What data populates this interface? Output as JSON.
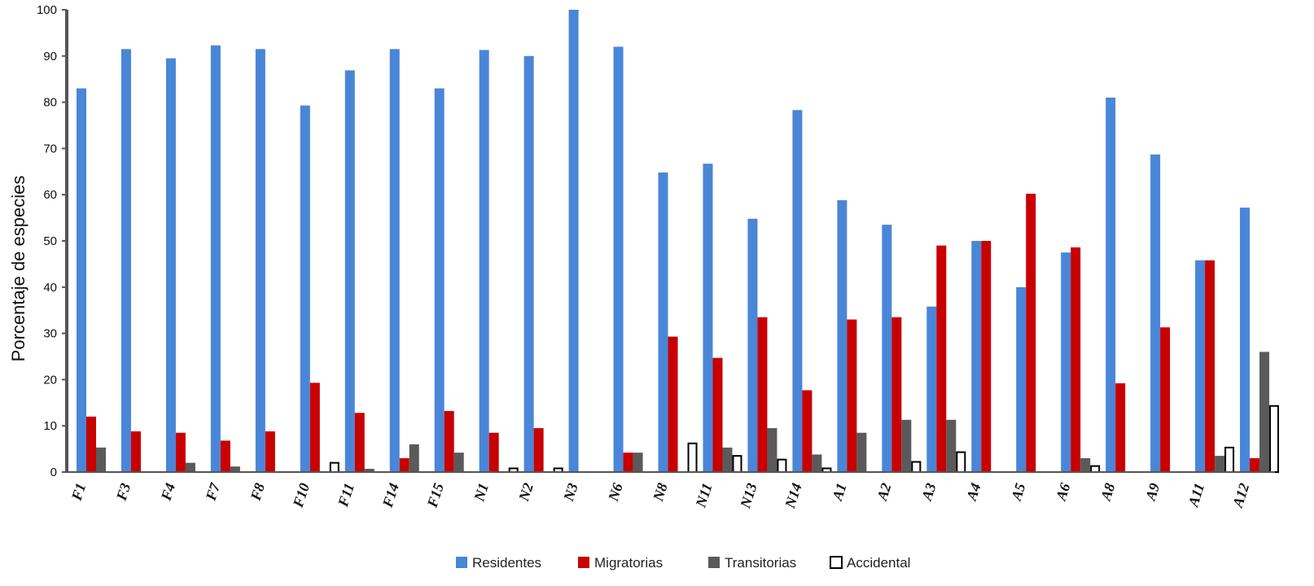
{
  "chart_data": {
    "type": "bar",
    "title": "",
    "xlabel": "",
    "ylabel": "Porcentaje de especies",
    "ylim": [
      0,
      100
    ],
    "yticks": [
      0,
      10,
      20,
      30,
      40,
      50,
      60,
      70,
      80,
      90,
      100
    ],
    "grid": false,
    "legend_position": "bottom",
    "categories": [
      "F1",
      "F3",
      "F4",
      "F7",
      "F8",
      "F10",
      "F11",
      "F14",
      "F15",
      "N1",
      "N2",
      "N3",
      "N6",
      "N8",
      "N11",
      "N13",
      "N14",
      "A1",
      "A2",
      "A3",
      "A4",
      "A5",
      "A6",
      "A8",
      "A9",
      "A11",
      "A12"
    ],
    "series": [
      {
        "name": "Residentes",
        "color": "#4a86d8",
        "values": [
          83,
          91.5,
          89.5,
          92.3,
          91.5,
          79.3,
          86.9,
          91.5,
          83,
          91.3,
          90,
          100,
          92,
          64.8,
          66.7,
          54.8,
          78.3,
          58.8,
          53.5,
          35.8,
          50,
          40,
          47.5,
          81,
          68.7,
          45.8,
          57.2
        ]
      },
      {
        "name": "Migratorias",
        "color": "#c80000",
        "values": [
          12,
          8.8,
          8.5,
          6.8,
          8.8,
          19.3,
          12.8,
          3,
          13.2,
          8.5,
          9.5,
          0,
          4.2,
          29.3,
          24.7,
          33.5,
          17.7,
          33,
          33.5,
          49,
          50,
          60.2,
          48.6,
          19.2,
          31.3,
          45.8,
          3
        ]
      },
      {
        "name": "Transitorias",
        "color": "#5a5a5a",
        "values": [
          5.3,
          0,
          2,
          1.2,
          0,
          0,
          0.7,
          6,
          4.2,
          0,
          0,
          0,
          4.2,
          0,
          5.3,
          9.5,
          3.8,
          8.5,
          11.3,
          11.3,
          0,
          0,
          3,
          0,
          0,
          3.5,
          26
        ]
      },
      {
        "name": "Accidental",
        "color": "#ffffff",
        "stroke": "#000000",
        "values": [
          0,
          0,
          0,
          0,
          0,
          2,
          0,
          0,
          0,
          0.8,
          0.8,
          0,
          0,
          6.2,
          3.5,
          2.7,
          0.8,
          0,
          2.2,
          4.3,
          0,
          0,
          1.3,
          0,
          0,
          5.3,
          14.3
        ]
      }
    ]
  }
}
